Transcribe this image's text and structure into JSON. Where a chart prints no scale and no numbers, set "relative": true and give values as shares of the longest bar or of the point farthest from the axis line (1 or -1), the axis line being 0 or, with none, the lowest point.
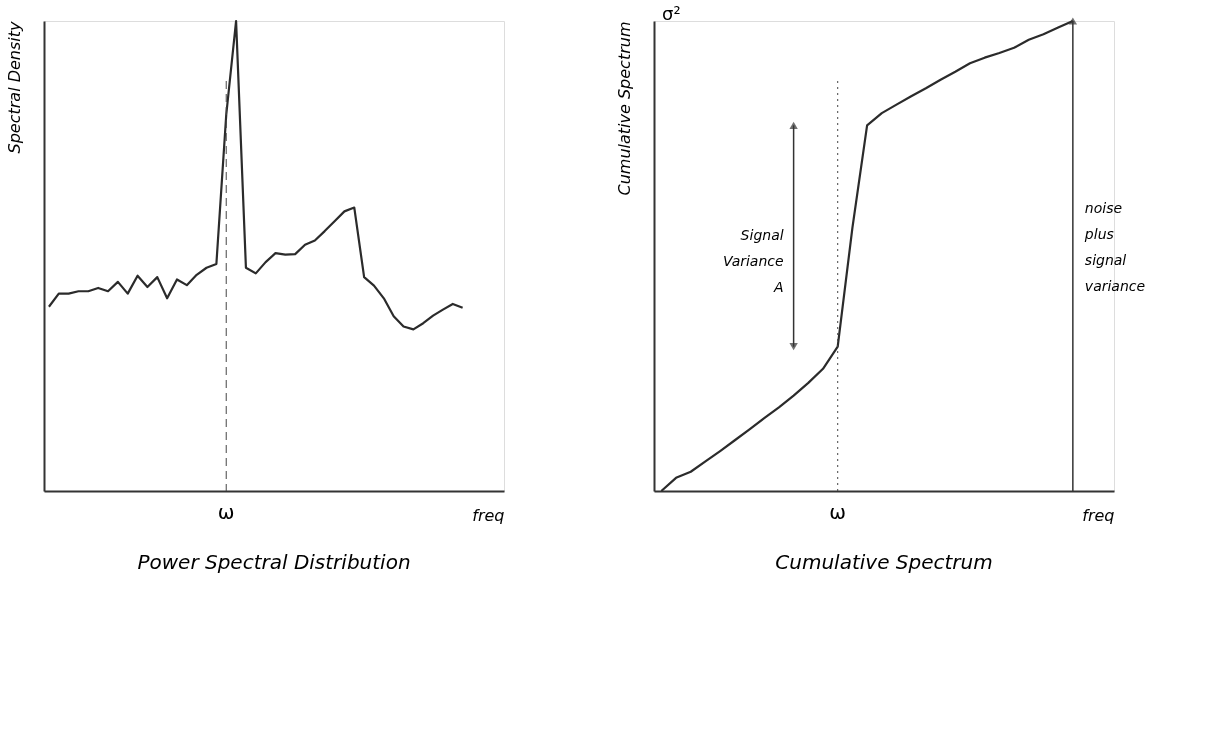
{
  "chart_data": [
    {
      "type": "line",
      "title": "Power Spectral Distribution",
      "xlabel": "freq",
      "ylabel": "Spectral Density",
      "relative": true,
      "categories": [
        null,
        null,
        null,
        null,
        null,
        null,
        null,
        null,
        null,
        null,
        null,
        null,
        null,
        null,
        null,
        null,
        null,
        null,
        null,
        null,
        null,
        null,
        null,
        null,
        null,
        null,
        null,
        null,
        null,
        null,
        null,
        null,
        null,
        null,
        null,
        null,
        null,
        null,
        null,
        null,
        null,
        null,
        null
      ],
      "series": [
        {
          "color": "#2b2b2b",
          "values": [
            0.392,
            0.42,
            0.42,
            0.425,
            0.425,
            0.432,
            0.425,
            0.445,
            0.42,
            0.458,
            0.434,
            0.455,
            0.41,
            0.45,
            0.438,
            0.46,
            0.475,
            0.483,
            0.8,
            1,
            0.475,
            0.463,
            0.487,
            0.506,
            0.503,
            0.504,
            0.524,
            0.533,
            0.553,
            0.574,
            0.595,
            0.603,
            0.455,
            0.437,
            0.41,
            0.372,
            0.35,
            0.344,
            0.357,
            0.373,
            0.386,
            0.398,
            0.39
          ]
        }
      ],
      "annotations": [
        "ω"
      ]
    },
    {
      "type": "line",
      "title": "Cumulative Spectrum",
      "xlabel": "freq",
      "ylabel": "Cumulative Spectrum",
      "relative": true,
      "categories": [
        null,
        null,
        null,
        null,
        null,
        null,
        null,
        null,
        null,
        null,
        null,
        null,
        null,
        null,
        null,
        null,
        null,
        null,
        null,
        null,
        null,
        null,
        null,
        null,
        null,
        null,
        null,
        null,
        null
      ],
      "series": [
        {
          "color": "#2b2b2b",
          "values": [
            0,
            0.028,
            0.041,
            0.063,
            0.085,
            0.108,
            0.131,
            0.155,
            0.178,
            0.203,
            0.23,
            0.26,
            0.307,
            0.56,
            0.778,
            0.804,
            0.822,
            0.84,
            0.857,
            0.875,
            0.892,
            0.91,
            0.922,
            0.932,
            0.943,
            0.96,
            0.972,
            0.986,
            1
          ]
        }
      ],
      "annotations": [
        "ω",
        "Signal Variance A",
        "noise plus signal variance",
        "σ²"
      ]
    }
  ]
}
